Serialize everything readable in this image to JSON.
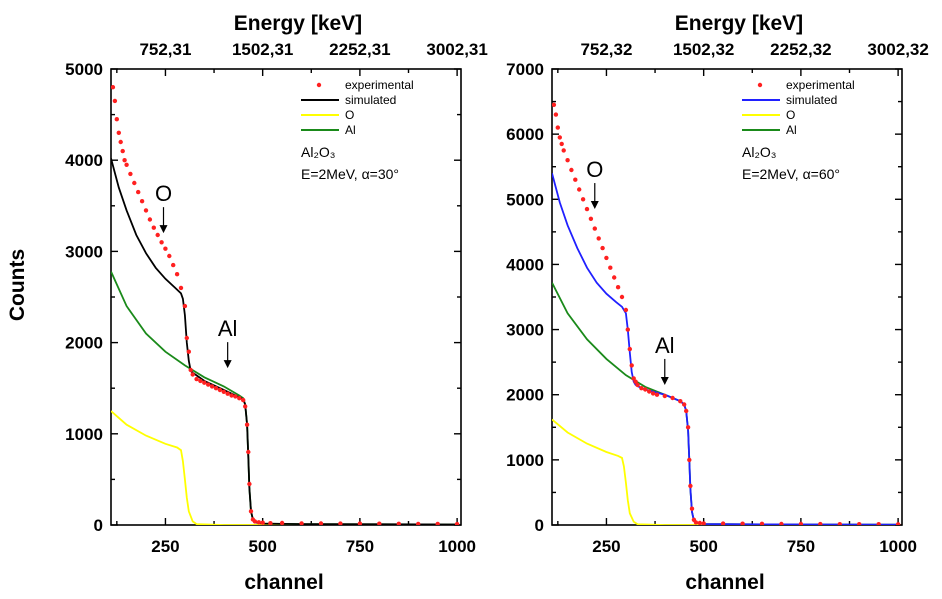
{
  "chart_data": [
    {
      "type": "scatter",
      "ylabel": "Counts",
      "xlabel": "channel",
      "top_axis_label": "Energy [keV]",
      "top_tick_labels": [
        "752,31",
        "1502,31",
        "2252,31",
        "3002,31"
      ],
      "top_tick_channels": [
        250,
        500,
        750,
        1000
      ],
      "xlim": [
        110,
        1010
      ],
      "ylim": [
        0,
        5000
      ],
      "xticks": [
        250,
        500,
        750,
        1000
      ],
      "yticks": [
        0,
        1000,
        2000,
        3000,
        4000,
        5000
      ],
      "legend": [
        "experimental",
        "simulated",
        "O",
        "Al"
      ],
      "legend_position": "top-right",
      "annotation_lines": [
        "Al₂O₃",
        "E=2MeV, α=30°"
      ],
      "peak_labels": [
        {
          "text": "O",
          "channel": 245,
          "arrow_tip": 3200
        },
        {
          "text": "Al",
          "channel": 410,
          "arrow_tip": 1720
        }
      ],
      "series": [
        {
          "name": "experimental",
          "kind": "points",
          "color": "#ff2020",
          "x": [
            115,
            120,
            125,
            130,
            135,
            140,
            145,
            150,
            160,
            170,
            180,
            190,
            200,
            210,
            220,
            230,
            240,
            250,
            260,
            270,
            280,
            290,
            300,
            305,
            310,
            315,
            320,
            330,
            340,
            350,
            360,
            370,
            380,
            390,
            400,
            410,
            420,
            430,
            440,
            450,
            455,
            460,
            463,
            466,
            470,
            475,
            480,
            490,
            500,
            520,
            550,
            600,
            650,
            700,
            750,
            800,
            850,
            900,
            950,
            1000
          ],
          "y": [
            4800,
            4650,
            4450,
            4300,
            4200,
            4100,
            4000,
            3950,
            3850,
            3750,
            3650,
            3550,
            3450,
            3350,
            3260,
            3180,
            3100,
            3030,
            2950,
            2850,
            2750,
            2600,
            2400,
            2050,
            1900,
            1700,
            1650,
            1600,
            1580,
            1560,
            1540,
            1520,
            1500,
            1480,
            1460,
            1440,
            1420,
            1410,
            1390,
            1370,
            1300,
            1100,
            800,
            450,
            150,
            60,
            40,
            30,
            25,
            20,
            22,
            18,
            16,
            15,
            15,
            14,
            13,
            12,
            12,
            10
          ]
        },
        {
          "name": "simulated",
          "kind": "line",
          "color": "#000000",
          "x": [
            110,
            130,
            150,
            175,
            200,
            225,
            250,
            275,
            290,
            295,
            300,
            305,
            310,
            315,
            320,
            330,
            350,
            400,
            440,
            450,
            455,
            460,
            463,
            466,
            470,
            475,
            480,
            500,
            600,
            800,
            1000
          ],
          "y": [
            4020,
            3700,
            3450,
            3180,
            2980,
            2820,
            2700,
            2600,
            2540,
            2480,
            2300,
            2000,
            1800,
            1690,
            1670,
            1640,
            1580,
            1480,
            1400,
            1380,
            1320,
            1100,
            750,
            400,
            150,
            60,
            30,
            15,
            10,
            8,
            5
          ]
        },
        {
          "name": "O",
          "kind": "line",
          "color": "#ffff00",
          "x": [
            110,
            150,
            200,
            250,
            280,
            290,
            295,
            300,
            305,
            310,
            320,
            330,
            400,
            600,
            800,
            1000
          ],
          "y": [
            1250,
            1100,
            980,
            890,
            850,
            820,
            700,
            500,
            300,
            150,
            40,
            10,
            0,
            0,
            0,
            0
          ]
        },
        {
          "name": "Al",
          "kind": "line",
          "color": "#1a8a1a",
          "x": [
            110,
            150,
            200,
            250,
            300,
            350,
            400,
            440,
            450,
            455,
            460,
            463,
            466,
            470,
            475,
            480,
            500,
            600,
            800,
            1000
          ],
          "y": [
            2780,
            2400,
            2100,
            1900,
            1750,
            1620,
            1520,
            1420,
            1390,
            1320,
            1100,
            750,
            400,
            150,
            60,
            30,
            15,
            10,
            8,
            5
          ]
        }
      ]
    },
    {
      "type": "scatter",
      "ylabel": "",
      "xlabel": "channel",
      "top_axis_label": "Energy [keV]",
      "top_tick_labels": [
        "752,32",
        "1502,32",
        "2252,32",
        "3002,32"
      ],
      "top_tick_channels": [
        250,
        500,
        750,
        1000
      ],
      "xlim": [
        110,
        1010
      ],
      "ylim": [
        0,
        7000
      ],
      "xticks": [
        250,
        500,
        750,
        1000
      ],
      "yticks": [
        0,
        1000,
        2000,
        3000,
        4000,
        5000,
        6000,
        7000
      ],
      "legend": [
        "experimental",
        "simulated",
        "O",
        "Al"
      ],
      "legend_position": "top-right",
      "annotation_lines": [
        "Al₂O₃",
        "E=2MeV, α=60°"
      ],
      "peak_labels": [
        {
          "text": "O",
          "channel": 220,
          "arrow_tip": 4850
        },
        {
          "text": "Al",
          "channel": 400,
          "arrow_tip": 2150
        }
      ],
      "series": [
        {
          "name": "experimental",
          "kind": "points",
          "color": "#ff2020",
          "x": [
            115,
            120,
            125,
            130,
            135,
            140,
            150,
            160,
            170,
            180,
            190,
            200,
            210,
            220,
            230,
            240,
            250,
            260,
            270,
            280,
            290,
            300,
            305,
            310,
            315,
            320,
            325,
            330,
            340,
            350,
            360,
            370,
            380,
            400,
            420,
            440,
            450,
            455,
            460,
            463,
            466,
            470,
            475,
            480,
            490,
            500,
            550,
            600,
            650,
            700,
            750,
            800,
            850,
            900,
            950,
            1000
          ],
          "y": [
            6450,
            6300,
            6100,
            5950,
            5850,
            5750,
            5600,
            5450,
            5300,
            5150,
            5000,
            4850,
            4700,
            4550,
            4400,
            4250,
            4100,
            3950,
            3800,
            3650,
            3500,
            3300,
            3000,
            2700,
            2450,
            2250,
            2200,
            2150,
            2100,
            2080,
            2050,
            2020,
            2000,
            1980,
            1950,
            1900,
            1850,
            1750,
            1500,
            1000,
            600,
            250,
            80,
            40,
            30,
            25,
            22,
            20,
            18,
            16,
            15,
            14,
            13,
            12,
            12,
            10
          ]
        },
        {
          "name": "simulated",
          "kind": "line",
          "color": "#2020ff",
          "x": [
            110,
            130,
            150,
            175,
            200,
            225,
            250,
            275,
            290,
            300,
            305,
            310,
            315,
            320,
            325,
            330,
            350,
            400,
            440,
            450,
            455,
            460,
            463,
            466,
            470,
            475,
            480,
            500,
            600,
            800,
            1000
          ],
          "y": [
            5400,
            4950,
            4600,
            4250,
            3950,
            3720,
            3550,
            3420,
            3350,
            3250,
            3000,
            2650,
            2350,
            2200,
            2150,
            2130,
            2080,
            2000,
            1900,
            1850,
            1750,
            1450,
            1000,
            550,
            200,
            70,
            35,
            15,
            10,
            8,
            5
          ]
        },
        {
          "name": "O",
          "kind": "line",
          "color": "#ffff00",
          "x": [
            110,
            150,
            200,
            250,
            280,
            290,
            295,
            300,
            305,
            310,
            320,
            330,
            400,
            600,
            800,
            1000
          ],
          "y": [
            1620,
            1420,
            1250,
            1120,
            1060,
            1030,
            900,
            650,
            380,
            180,
            50,
            10,
            0,
            0,
            0,
            0
          ]
        },
        {
          "name": "Al",
          "kind": "line",
          "color": "#1a8a1a",
          "x": [
            110,
            150,
            200,
            250,
            300,
            350,
            400,
            440,
            450,
            455,
            460,
            463,
            466,
            470,
            475,
            480,
            500,
            600,
            800,
            1000
          ],
          "y": [
            3720,
            3250,
            2850,
            2550,
            2300,
            2120,
            2000,
            1900,
            1850,
            1750,
            1450,
            1000,
            550,
            200,
            70,
            35,
            15,
            10,
            8,
            5
          ]
        }
      ]
    }
  ]
}
